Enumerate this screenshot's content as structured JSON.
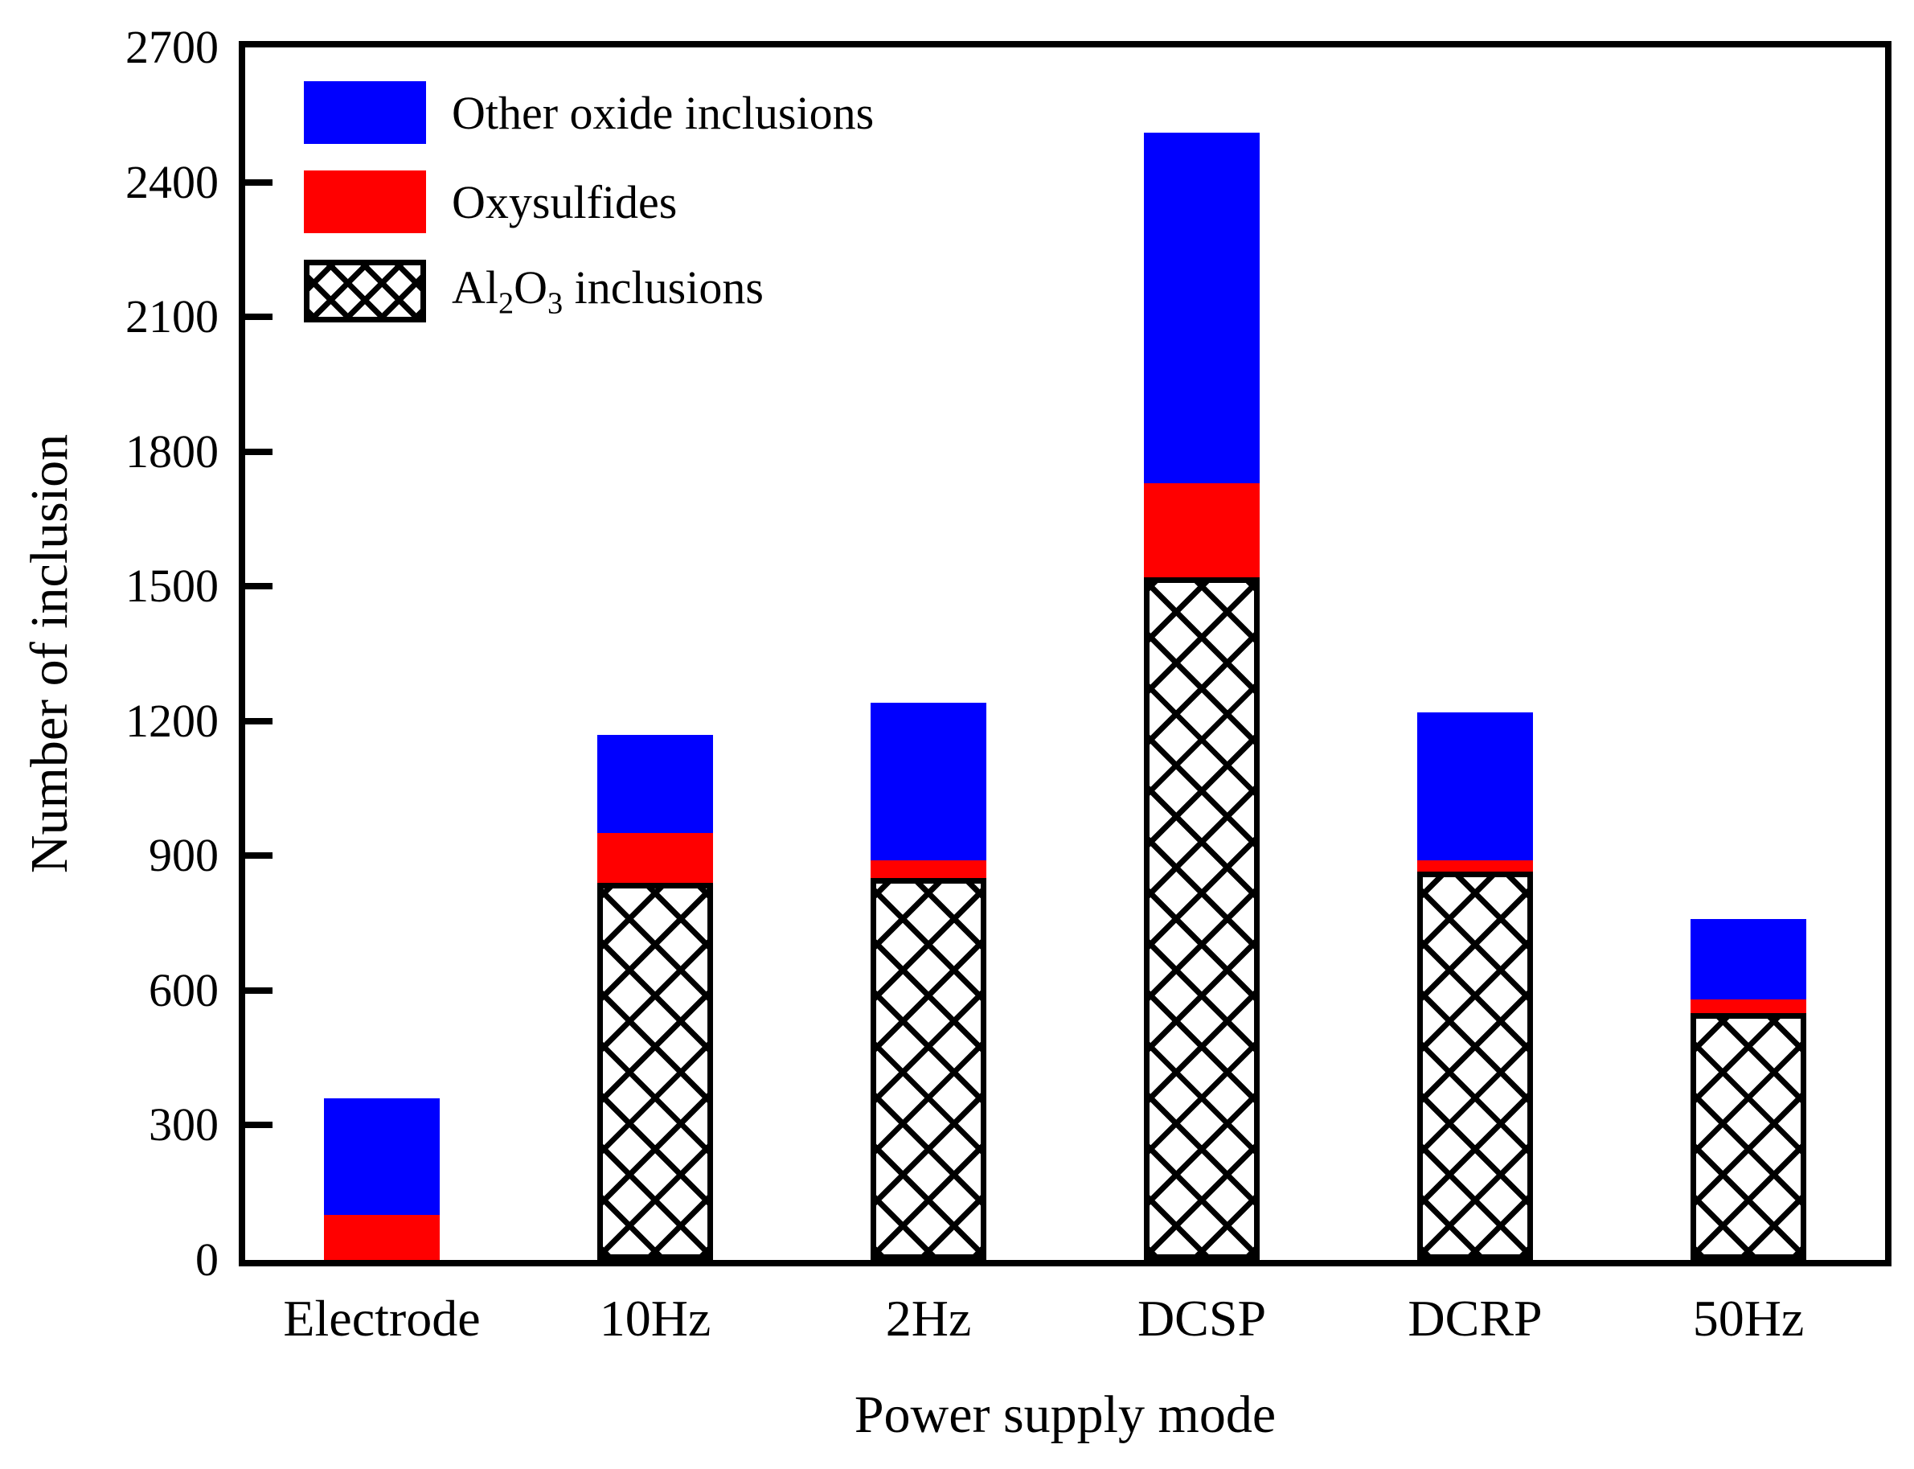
{
  "chart_data": {
    "type": "bar",
    "stacked": true,
    "title": "",
    "xlabel": "Power supply mode",
    "ylabel": "Number of inclusion",
    "categories": [
      "Electrode",
      "10Hz",
      "2Hz",
      "DCSP",
      "DCRP",
      "50Hz"
    ],
    "series": [
      {
        "name": "Al2O3 inclusions",
        "pattern": "crosshatch",
        "color": "#000000",
        "values": [
          0,
          840,
          850,
          1520,
          865,
          550
        ]
      },
      {
        "name": "Oxysulfides",
        "color": "#FF0000",
        "values": [
          100,
          110,
          40,
          210,
          25,
          30
        ]
      },
      {
        "name": "Other oxide inclusions",
        "color": "#0000FF",
        "values": [
          260,
          220,
          350,
          780,
          330,
          180
        ]
      }
    ],
    "totals": [
      360,
      1170,
      1240,
      2510,
      1220,
      760
    ],
    "legend": [
      {
        "label": "Other oxide inclusions",
        "swatch": "solid",
        "color": "#0000FF"
      },
      {
        "label": "Oxysulfides",
        "swatch": "solid",
        "color": "#FF0000"
      },
      {
        "label": "Al2O3 inclusions",
        "swatch": "crosshatch",
        "color": "#000000",
        "subscript_digits": true
      }
    ],
    "legend_position": "top-left",
    "grid": false,
    "y_axis": {
      "min": 0,
      "max": 2700,
      "tick_step": 300,
      "ticks": [
        0,
        300,
        600,
        900,
        1200,
        1500,
        1800,
        2100,
        2400,
        2700
      ],
      "tick_labels": [
        "0",
        "300",
        "600",
        "900",
        "1200",
        "1500",
        "1800",
        "2100",
        "2400",
        "2700"
      ]
    }
  },
  "colors": {
    "background": "#FFFFFF",
    "axis": "#000000",
    "other_oxide": "#0000FF",
    "oxysulfides": "#FF0000",
    "al2o3_hatch": "#000000"
  }
}
